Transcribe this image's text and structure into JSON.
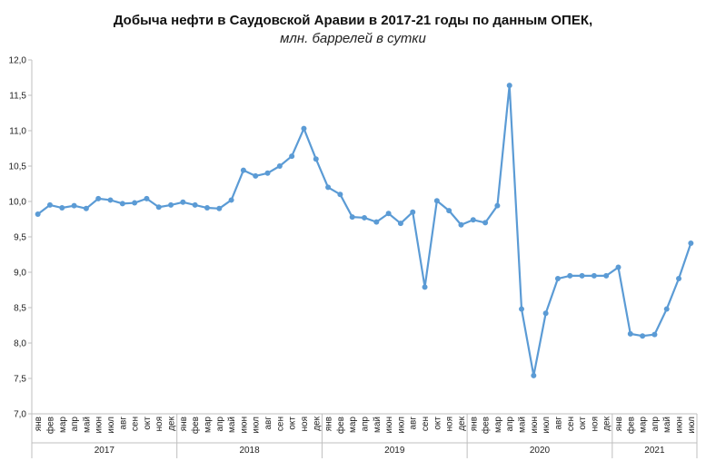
{
  "chart_data": {
    "type": "line",
    "title": "Добыча  нефти в Саудовской  Аравии  в 2017-21 годы по данным ОПЕК,",
    "subtitle": "млн. баррелей в сутки",
    "ylim": [
      7.0,
      12.0
    ],
    "yticks": [
      "7,0",
      "7,5",
      "8,0",
      "8,5",
      "9,0",
      "9,5",
      "10,0",
      "10,5",
      "11,0",
      "11,5",
      "12,0"
    ],
    "grid": false,
    "line_color": "#5b9bd5",
    "years": [
      {
        "label": "2017",
        "count": 12
      },
      {
        "label": "2018",
        "count": 12
      },
      {
        "label": "2019",
        "count": 12
      },
      {
        "label": "2020",
        "count": 12
      },
      {
        "label": "2021",
        "count": 7
      }
    ],
    "categories": [
      "янв",
      "фев",
      "мар",
      "апр",
      "май",
      "июн",
      "июл",
      "авг",
      "сен",
      "окт",
      "ноя",
      "дек",
      "янв",
      "фев",
      "мар",
      "апр",
      "май",
      "июн",
      "июл",
      "авг",
      "сен",
      "окт",
      "ноя",
      "дек",
      "янв",
      "фев",
      "мар",
      "апр",
      "май",
      "июн",
      "июл",
      "авг",
      "сен",
      "окт",
      "ноя",
      "дек",
      "янв",
      "фев",
      "мар",
      "апр",
      "май",
      "июн",
      "июл",
      "авг",
      "сен",
      "окт",
      "ноя",
      "дек",
      "янв",
      "фев",
      "мар",
      "апр",
      "май",
      "июн",
      "июл"
    ],
    "values": [
      9.82,
      9.95,
      9.91,
      9.94,
      9.9,
      10.04,
      10.02,
      9.97,
      9.98,
      10.04,
      9.92,
      9.95,
      9.99,
      9.95,
      9.91,
      9.9,
      10.02,
      10.44,
      10.36,
      10.4,
      10.5,
      10.64,
      11.03,
      10.6,
      10.2,
      10.1,
      9.78,
      9.77,
      9.71,
      9.83,
      9.69,
      9.85,
      8.79,
      10.01,
      9.87,
      9.67,
      9.74,
      9.7,
      9.94,
      11.64,
      8.48,
      7.54,
      8.42,
      8.91,
      8.95,
      8.95,
      8.95,
      8.95,
      9.07,
      8.13,
      8.1,
      8.12,
      8.48,
      8.91,
      9.41
    ]
  }
}
